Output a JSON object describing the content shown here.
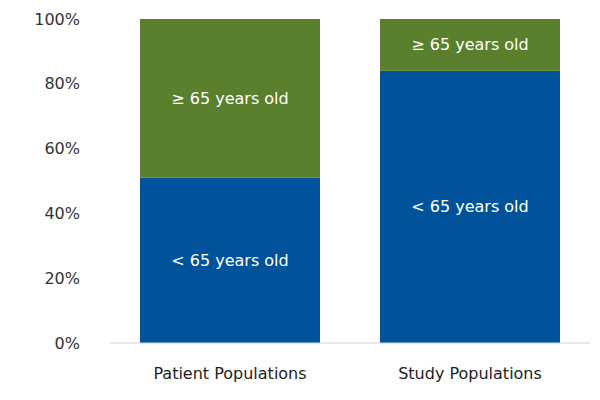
{
  "chart_data": {
    "type": "bar",
    "stacked": true,
    "grid": false,
    "categories": [
      "Patient Populations",
      "Study Populations"
    ],
    "series": [
      {
        "name": "< 65 years old",
        "color": "#00529b",
        "values": [
          51,
          84
        ]
      },
      {
        "name": "≥ 65 years old",
        "color": "#5a7f2d",
        "values": [
          49,
          16
        ]
      }
    ],
    "ylim": [
      0,
      100
    ],
    "yticks": [
      {
        "value": 0,
        "label": "0%"
      },
      {
        "value": 20,
        "label": "20%"
      },
      {
        "value": 40,
        "label": "40%"
      },
      {
        "value": 60,
        "label": "60%"
      },
      {
        "value": 80,
        "label": "80%"
      },
      {
        "value": 100,
        "label": "100%"
      }
    ]
  }
}
